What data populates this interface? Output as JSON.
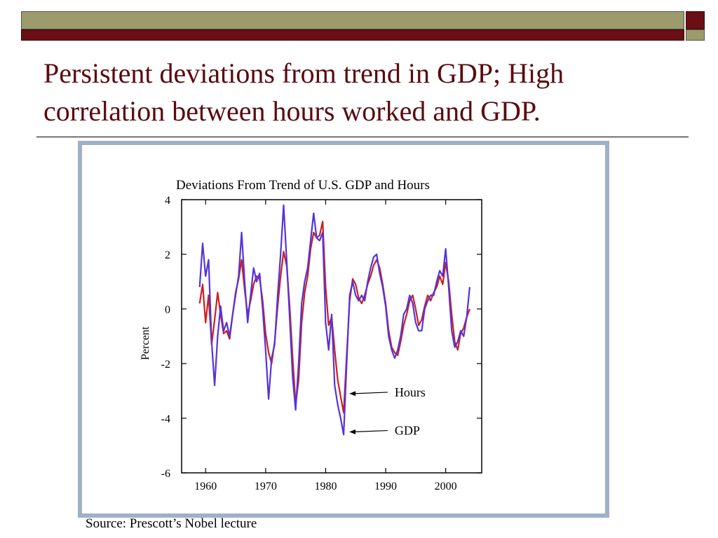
{
  "slide": {
    "title_line1": "Persistent deviations from trend in GDP; High",
    "title_line2": "correlation between hours worked and GDP.",
    "source": "Source: Prescott’s Nobel lecture"
  },
  "colors": {
    "olive": "#9b9b6b",
    "maroon": "#6b0f16",
    "title": "#5a0a10",
    "frame": "#9fb0c8",
    "hours": "#cc1f1f",
    "gdp": "#5533dd"
  },
  "chart_data": {
    "type": "line",
    "title": "Deviations From Trend of U.S. GDP and Hours",
    "xlabel": "",
    "ylabel": "Percent",
    "xlim": [
      1956,
      2006
    ],
    "ylim": [
      -6,
      4
    ],
    "xticks": [
      1960,
      1970,
      1980,
      1990,
      2000
    ],
    "yticks": [
      4,
      2,
      0,
      -2,
      -4,
      -6
    ],
    "grid": false,
    "annotations": [
      {
        "text": "Hours",
        "series": "Hours",
        "point": [
          1983,
          -3.1
        ],
        "label_at": [
          1991.5,
          -3.05
        ]
      },
      {
        "text": "GDP",
        "series": "GDP",
        "point": [
          1983,
          -4.5
        ],
        "label_at": [
          1991.5,
          -4.45
        ]
      }
    ],
    "series": [
      {
        "name": "Hours",
        "color": "#cc1f1f",
        "x": [
          1959,
          1959.5,
          1960,
          1960.5,
          1961,
          1961.5,
          1962,
          1962.5,
          1963,
          1963.5,
          1964,
          1964.5,
          1965,
          1965.5,
          1966,
          1966.5,
          1967,
          1967.5,
          1968,
          1968.5,
          1969,
          1969.5,
          1970,
          1970.5,
          1971,
          1971.5,
          1972,
          1972.5,
          1973,
          1973.5,
          1974,
          1974.5,
          1975,
          1975.5,
          1976,
          1976.5,
          1977,
          1977.5,
          1978,
          1978.5,
          1979,
          1979.5,
          1980,
          1980.5,
          1981,
          1981.5,
          1982,
          1982.5,
          1983,
          1983.5,
          1984,
          1984.5,
          1985,
          1985.5,
          1986,
          1986.5,
          1987,
          1987.5,
          1988,
          1988.5,
          1989,
          1989.5,
          1990,
          1990.5,
          1991,
          1991.5,
          1992,
          1992.5,
          1993,
          1993.5,
          1994,
          1994.5,
          1995,
          1995.5,
          1996,
          1996.5,
          1997,
          1997.5,
          1998,
          1998.5,
          1999,
          1999.5,
          2000,
          2000.5,
          2001,
          2001.5,
          2002,
          2002.5,
          2003,
          2003.5,
          2004
        ],
        "y": [
          0.2,
          0.9,
          -0.5,
          0.5,
          -1.3,
          -0.4,
          0.6,
          -0.2,
          -0.9,
          -0.8,
          -1.1,
          -0.2,
          0.6,
          1.1,
          1.8,
          0.7,
          -0.2,
          0.3,
          0.9,
          1.2,
          1.1,
          0.3,
          -0.9,
          -1.6,
          -2.0,
          -1.2,
          0.1,
          1.2,
          2.1,
          1.6,
          0.1,
          -1.8,
          -3.5,
          -2.6,
          -0.5,
          0.6,
          1.2,
          2.2,
          2.8,
          2.6,
          2.7,
          3.2,
          0.8,
          -0.6,
          -0.3,
          -1.5,
          -2.6,
          -3.2,
          -3.8,
          -1.7,
          0.3,
          1.1,
          0.9,
          0.4,
          0.2,
          0.5,
          0.9,
          1.2,
          1.6,
          1.8,
          1.5,
          0.9,
          0.2,
          -0.8,
          -1.4,
          -1.6,
          -1.7,
          -1.2,
          -0.6,
          -0.2,
          0.3,
          0.5,
          0.0,
          -0.6,
          -0.4,
          0.1,
          0.5,
          0.3,
          0.6,
          0.8,
          1.2,
          0.9,
          1.7,
          1.0,
          -0.2,
          -1.2,
          -1.5,
          -0.9,
          -0.7,
          -0.3,
          0.0
        ]
      },
      {
        "name": "GDP",
        "color": "#5533dd",
        "x": [
          1959,
          1959.5,
          1960,
          1960.5,
          1961,
          1961.5,
          1962,
          1962.5,
          1963,
          1963.5,
          1964,
          1964.5,
          1965,
          1965.5,
          1966,
          1966.5,
          1967,
          1967.5,
          1968,
          1968.5,
          1969,
          1969.5,
          1970,
          1970.5,
          1971,
          1971.5,
          1972,
          1972.5,
          1973,
          1973.5,
          1974,
          1974.5,
          1975,
          1975.5,
          1976,
          1976.5,
          1977,
          1977.5,
          1978,
          1978.5,
          1979,
          1979.5,
          1980,
          1980.5,
          1981,
          1981.5,
          1982,
          1982.5,
          1983,
          1983.5,
          1984,
          1984.5,
          1985,
          1985.5,
          1986,
          1986.5,
          1987,
          1987.5,
          1988,
          1988.5,
          1989,
          1989.5,
          1990,
          1990.5,
          1991,
          1991.5,
          1992,
          1992.5,
          1993,
          1993.5,
          1994,
          1994.5,
          1995,
          1995.5,
          1996,
          1996.5,
          1997,
          1997.5,
          1998,
          1998.5,
          1999,
          1999.5,
          2000,
          2000.5,
          2001,
          2001.5,
          2002,
          2002.5,
          2003,
          2003.5,
          2004
        ],
        "y": [
          0.8,
          2.4,
          1.2,
          1.8,
          -1.2,
          -2.8,
          -1.0,
          0.1,
          -0.8,
          -0.5,
          -1.0,
          -0.2,
          0.5,
          1.2,
          2.8,
          1.0,
          -0.5,
          0.5,
          1.5,
          1.0,
          1.3,
          0.0,
          -1.5,
          -3.3,
          -1.8,
          -1.3,
          0.5,
          2.0,
          3.8,
          1.8,
          -0.3,
          -2.5,
          -3.7,
          -2.0,
          0.2,
          1.0,
          1.5,
          2.5,
          3.5,
          2.6,
          2.5,
          2.8,
          -0.5,
          -1.5,
          -0.2,
          -2.8,
          -3.5,
          -4.0,
          -4.6,
          -2.0,
          0.5,
          1.0,
          0.5,
          0.3,
          0.5,
          0.3,
          1.0,
          1.5,
          1.9,
          2.0,
          1.3,
          0.8,
          0.1,
          -1.0,
          -1.5,
          -1.8,
          -1.5,
          -1.0,
          -0.2,
          0.0,
          0.5,
          0.2,
          -0.5,
          -0.8,
          -0.8,
          0.0,
          0.3,
          0.5,
          0.5,
          1.0,
          1.4,
          1.2,
          2.2,
          0.8,
          -0.8,
          -1.4,
          -1.2,
          -0.8,
          -1.0,
          -0.3,
          0.8
        ]
      }
    ]
  }
}
